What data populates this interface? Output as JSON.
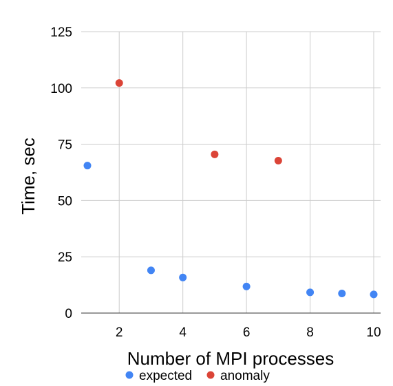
{
  "chart_data": {
    "type": "scatter",
    "title": "",
    "xlabel": "Number of MPI processes",
    "ylabel": "Time, sec",
    "xlim": [
      1,
      10
    ],
    "ylim": [
      0,
      125
    ],
    "x_ticks": [
      2,
      4,
      6,
      8,
      10
    ],
    "y_ticks": [
      0,
      25,
      50,
      75,
      100,
      125
    ],
    "grid": true,
    "legend_position": "bottom",
    "series": [
      {
        "name": "expected",
        "color": "#4285f4",
        "points": [
          {
            "x": 1,
            "y": 65.5
          },
          {
            "x": 3,
            "y": 19
          },
          {
            "x": 4,
            "y": 15.8
          },
          {
            "x": 6,
            "y": 11.8
          },
          {
            "x": 8,
            "y": 9.2
          },
          {
            "x": 9,
            "y": 8.7
          },
          {
            "x": 10,
            "y": 8.3
          }
        ]
      },
      {
        "name": "anomaly",
        "color": "#db4437",
        "points": [
          {
            "x": 2,
            "y": 102.2
          },
          {
            "x": 5,
            "y": 70.5
          },
          {
            "x": 7,
            "y": 67.7
          }
        ]
      }
    ]
  }
}
